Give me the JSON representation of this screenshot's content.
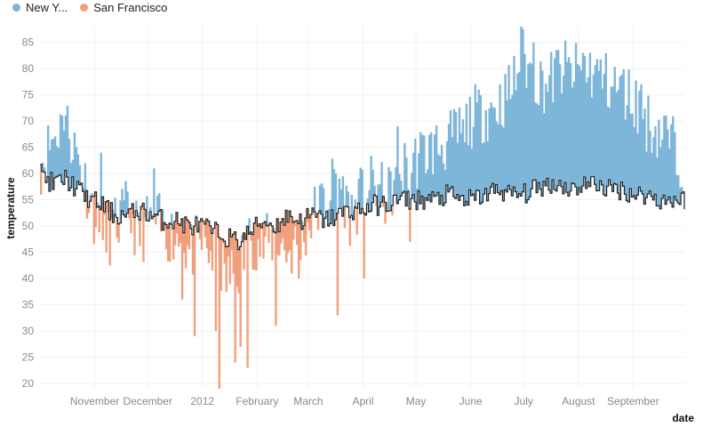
{
  "legend": {
    "ny_label": "New Y...",
    "sf_label": "San Francisco"
  },
  "colors": {
    "ny": "#7eb6d9",
    "sf": "#f0a07c",
    "line": "#222222",
    "grid": "#f1f1f1",
    "tick_text": "#8a8a8a"
  },
  "chart_data": {
    "type": "area",
    "title": "",
    "xlabel": "date",
    "ylabel": "temperature",
    "xlim": [
      "2011-10-01",
      "2012-09-30"
    ],
    "ylim": [
      19,
      88
    ],
    "x_ticks": [
      {
        "date": "2011-11-01",
        "label": "November"
      },
      {
        "date": "2011-12-01",
        "label": "December"
      },
      {
        "date": "2012-01-01",
        "label": "2012"
      },
      {
        "date": "2012-02-01",
        "label": "February"
      },
      {
        "date": "2012-03-01",
        "label": "March"
      },
      {
        "date": "2012-04-01",
        "label": "April"
      },
      {
        "date": "2012-05-01",
        "label": "May"
      },
      {
        "date": "2012-06-01",
        "label": "June"
      },
      {
        "date": "2012-07-01",
        "label": "July"
      },
      {
        "date": "2012-08-01",
        "label": "August"
      },
      {
        "date": "2012-09-01",
        "label": "September"
      }
    ],
    "y_ticks": [
      20,
      25,
      30,
      35,
      40,
      45,
      50,
      55,
      60,
      65,
      70,
      75,
      80,
      85
    ],
    "grid": true,
    "legend_position": "top-left",
    "series": [
      {
        "name": "New Y...",
        "weekly_dates": [
          "2011-10-01",
          "2011-10-08",
          "2011-10-15",
          "2011-10-22",
          "2011-10-29",
          "2011-11-05",
          "2011-11-12",
          "2011-11-19",
          "2011-11-26",
          "2011-12-03",
          "2011-12-10",
          "2011-12-17",
          "2011-12-24",
          "2011-12-31",
          "2012-01-07",
          "2012-01-14",
          "2012-01-21",
          "2012-01-28",
          "2012-02-04",
          "2012-02-11",
          "2012-02-18",
          "2012-02-25",
          "2012-03-03",
          "2012-03-10",
          "2012-03-17",
          "2012-03-24",
          "2012-03-31",
          "2012-04-07",
          "2012-04-14",
          "2012-04-21",
          "2012-04-28",
          "2012-05-05",
          "2012-05-12",
          "2012-05-19",
          "2012-05-26",
          "2012-06-02",
          "2012-06-09",
          "2012-06-16",
          "2012-06-23",
          "2012-06-30",
          "2012-07-07",
          "2012-07-14",
          "2012-07-21",
          "2012-07-28",
          "2012-08-04",
          "2012-08-11",
          "2012-08-18",
          "2012-08-25",
          "2012-09-01",
          "2012-09-08",
          "2012-09-15",
          "2012-09-22",
          "2012-09-29"
        ],
        "weekly_values": [
          62,
          67,
          70,
          63,
          55,
          46,
          50,
          53,
          48,
          52,
          49,
          48,
          45,
          47,
          44,
          40,
          42,
          48,
          46,
          48,
          45,
          47,
          52,
          55,
          60,
          52,
          56,
          58,
          55,
          60,
          62,
          64,
          65,
          66,
          68,
          71,
          72,
          73,
          76,
          82,
          78,
          77,
          80,
          79,
          80,
          79,
          77,
          76,
          74,
          70,
          68,
          66,
          62
        ]
      },
      {
        "name": "San Francisco",
        "weekly_dates": [
          "2011-10-01",
          "2011-10-08",
          "2011-10-15",
          "2011-10-22",
          "2011-10-29",
          "2011-11-05",
          "2011-11-12",
          "2011-11-19",
          "2011-11-26",
          "2011-12-03",
          "2011-12-10",
          "2011-12-17",
          "2011-12-24",
          "2011-12-31",
          "2012-01-07",
          "2012-01-14",
          "2012-01-21",
          "2012-01-28",
          "2012-02-04",
          "2012-02-11",
          "2012-02-18",
          "2012-02-25",
          "2012-03-03",
          "2012-03-10",
          "2012-03-17",
          "2012-03-24",
          "2012-03-31",
          "2012-04-07",
          "2012-04-14",
          "2012-04-21",
          "2012-04-28",
          "2012-05-05",
          "2012-05-12",
          "2012-05-19",
          "2012-05-26",
          "2012-06-02",
          "2012-06-09",
          "2012-06-16",
          "2012-06-23",
          "2012-06-30",
          "2012-07-07",
          "2012-07-14",
          "2012-07-21",
          "2012-07-28",
          "2012-08-04",
          "2012-08-11",
          "2012-08-18",
          "2012-08-25",
          "2012-09-01",
          "2012-09-08",
          "2012-09-15",
          "2012-09-22",
          "2012-09-29"
        ],
        "weekly_values": [
          60,
          58,
          59,
          57,
          55,
          54,
          52,
          52,
          53,
          52,
          51,
          51,
          50,
          50,
          49,
          48,
          47,
          49,
          51,
          50,
          52,
          51,
          52,
          51,
          52,
          53,
          53,
          54,
          54,
          55,
          55,
          55,
          55,
          56,
          55,
          55,
          56,
          57,
          56,
          56,
          57,
          58,
          58,
          57,
          58,
          58,
          57,
          57,
          56,
          56,
          55,
          55,
          55
        ]
      }
    ]
  },
  "render": {
    "seed": 11,
    "ny_outliers": [
      {
        "date": "2011-10-13",
        "value": 71
      },
      {
        "date": "2012-04-20",
        "value": 69
      },
      {
        "date": "2012-05-28",
        "value": 66
      },
      {
        "date": "2012-06-05",
        "value": 76
      },
      {
        "date": "2012-06-20",
        "value": 79
      },
      {
        "date": "2012-06-29",
        "value": 88
      },
      {
        "date": "2012-07-06",
        "value": 85
      },
      {
        "date": "2012-07-18",
        "value": 82
      },
      {
        "date": "2012-08-03",
        "value": 83
      },
      {
        "date": "2012-08-15",
        "value": 79
      },
      {
        "date": "2012-09-05",
        "value": 77
      },
      {
        "date": "2012-09-18",
        "value": 71
      }
    ],
    "sf_outliers": [
      {
        "date": "2011-11-04",
        "value": 64
      },
      {
        "date": "2011-12-04",
        "value": 61
      },
      {
        "date": "2011-12-20",
        "value": 36
      },
      {
        "date": "2011-12-27",
        "value": 29
      },
      {
        "date": "2012-01-08",
        "value": 30
      },
      {
        "date": "2012-01-10",
        "value": 19
      },
      {
        "date": "2012-01-19",
        "value": 24
      },
      {
        "date": "2012-01-22",
        "value": 27
      },
      {
        "date": "2012-01-26",
        "value": 23
      },
      {
        "date": "2012-02-11",
        "value": 31
      },
      {
        "date": "2012-02-24",
        "value": 40
      },
      {
        "date": "2012-03-17",
        "value": 33
      },
      {
        "date": "2012-04-01",
        "value": 40
      },
      {
        "date": "2012-04-27",
        "value": 47
      }
    ]
  }
}
